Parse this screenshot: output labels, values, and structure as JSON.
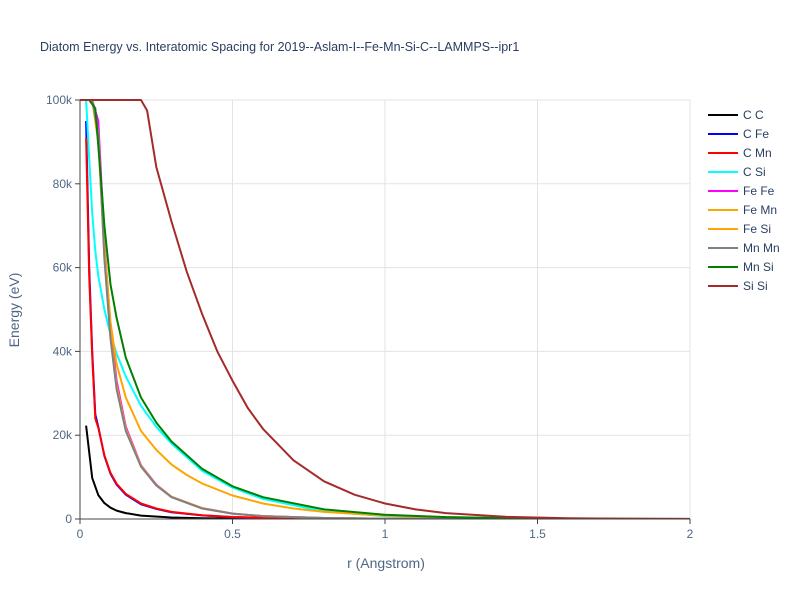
{
  "chart_data": {
    "type": "line",
    "title": "Diatom Energy vs. Interatomic Spacing for 2019--Aslam-I--Fe-Mn-Si-C--LAMMPS--ipr1",
    "xlabel": "r (Angstrom)",
    "ylabel": "Energy (eV)",
    "xlim": [
      0,
      2
    ],
    "ylim": [
      0,
      100000
    ],
    "xticks": [
      0,
      0.5,
      1,
      1.5,
      2
    ],
    "xtick_labels": [
      "0",
      "0.5",
      "1",
      "1.5",
      "2"
    ],
    "yticks": [
      0,
      20000,
      40000,
      60000,
      80000,
      100000
    ],
    "ytick_labels": [
      "0",
      "20k",
      "40k",
      "60k",
      "80k",
      "100k"
    ],
    "grid": true,
    "legend_position": "right",
    "series": [
      {
        "name": "C C",
        "color": "#000000",
        "x": [
          0.02,
          0.04,
          0.06,
          0.08,
          0.1,
          0.12,
          0.15,
          0.2,
          0.3,
          0.4,
          0.6,
          1.0,
          2.0
        ],
        "y": [
          22300,
          9800,
          5700,
          3800,
          2700,
          2000,
          1400,
          800,
          350,
          180,
          60,
          10,
          0
        ]
      },
      {
        "name": "C Fe",
        "color": "#0000ff",
        "x": [
          0.02,
          0.03,
          0.04,
          0.05,
          0.06,
          0.08,
          0.1,
          0.12,
          0.15,
          0.2,
          0.25,
          0.3,
          0.4,
          0.5,
          0.7,
          1.0,
          2.0
        ],
        "y": [
          95000,
          60000,
          40000,
          25000,
          22000,
          15000,
          10800,
          8200,
          5800,
          3500,
          2400,
          1600,
          850,
          450,
          150,
          30,
          0
        ]
      },
      {
        "name": "C Mn",
        "color": "#ff0000",
        "x": [
          0.02,
          0.03,
          0.04,
          0.05,
          0.06,
          0.08,
          0.1,
          0.12,
          0.15,
          0.2,
          0.25,
          0.3,
          0.4,
          0.5,
          0.7,
          1.0,
          2.0
        ],
        "y": [
          91000,
          58000,
          39000,
          24000,
          21800,
          15200,
          11000,
          8400,
          6000,
          3700,
          2500,
          1700,
          900,
          480,
          160,
          30,
          0
        ]
      },
      {
        "name": "C Si",
        "color": "#00ffff",
        "x": [
          0.02,
          0.03,
          0.04,
          0.05,
          0.06,
          0.08,
          0.1,
          0.12,
          0.15,
          0.2,
          0.25,
          0.3,
          0.4,
          0.5,
          0.6,
          0.8,
          1.0,
          1.5,
          2.0
        ],
        "y": [
          100000,
          86000,
          73000,
          64000,
          58000,
          50000,
          44000,
          39500,
          34000,
          27000,
          22000,
          18000,
          11500,
          7500,
          4800,
          1800,
          700,
          100,
          10
        ]
      },
      {
        "name": "Fe Fe",
        "color": "#ff00ff",
        "x": [
          0.04,
          0.06,
          0.08,
          0.1,
          0.12,
          0.15,
          0.2,
          0.25,
          0.3,
          0.4,
          0.5,
          0.6,
          0.8,
          1.0,
          1.5,
          2.0
        ],
        "y": [
          100000,
          95000,
          66000,
          46000,
          33000,
          22000,
          12800,
          8200,
          5300,
          2600,
          1300,
          700,
          250,
          80,
          10,
          0
        ]
      },
      {
        "name": "Fe Mn",
        "color": "#ffa500",
        "x": [
          0.04,
          0.06,
          0.08,
          0.1,
          0.12,
          0.15,
          0.2,
          0.25,
          0.3,
          0.4,
          0.5,
          0.6,
          0.8,
          1.0,
          1.5,
          2.0
        ],
        "y": [
          100000,
          92000,
          63000,
          44000,
          32000,
          21500,
          12700,
          8100,
          5300,
          2600,
          1300,
          700,
          250,
          80,
          10,
          0
        ]
      },
      {
        "name": "Fe Si",
        "color": "#ffa500",
        "x": [
          0.04,
          0.06,
          0.08,
          0.1,
          0.12,
          0.15,
          0.2,
          0.25,
          0.3,
          0.35,
          0.4,
          0.5,
          0.6,
          0.7,
          0.8,
          1.0,
          1.2,
          1.5,
          2.0
        ],
        "y": [
          100000,
          90000,
          65000,
          47000,
          37000,
          29000,
          21000,
          16500,
          13000,
          10500,
          8500,
          5600,
          3700,
          2500,
          1700,
          800,
          400,
          120,
          10
        ]
      },
      {
        "name": "Mn Mn",
        "color": "#808080",
        "x": [
          0.04,
          0.06,
          0.08,
          0.1,
          0.12,
          0.15,
          0.2,
          0.25,
          0.3,
          0.4,
          0.5,
          0.6,
          0.8,
          1.0,
          1.5,
          2.0
        ],
        "y": [
          100000,
          92000,
          62000,
          43000,
          31000,
          21000,
          12500,
          8000,
          5200,
          2500,
          1300,
          700,
          250,
          80,
          10,
          0
        ]
      },
      {
        "name": "Mn Si",
        "color": "#008000",
        "x": [
          0.03,
          0.05,
          0.07,
          0.08,
          0.1,
          0.12,
          0.15,
          0.2,
          0.25,
          0.3,
          0.4,
          0.5,
          0.6,
          0.8,
          1.0,
          1.2,
          1.5,
          2.0
        ],
        "y": [
          100000,
          98000,
          80000,
          70000,
          56000,
          48000,
          38500,
          29000,
          23000,
          18500,
          12000,
          7800,
          5200,
          2300,
          1000,
          450,
          120,
          10
        ]
      },
      {
        "name": "Si Si",
        "color": "#a52a2a",
        "x": [
          0,
          0.1,
          0.2,
          0.22,
          0.25,
          0.3,
          0.35,
          0.4,
          0.45,
          0.5,
          0.55,
          0.6,
          0.7,
          0.8,
          0.9,
          1.0,
          1.1,
          1.2,
          1.4,
          1.6,
          1.8,
          2.0
        ],
        "y": [
          100000,
          100000,
          100000,
          97500,
          84000,
          71000,
          59000,
          49000,
          40000,
          33000,
          26500,
          21500,
          14000,
          9000,
          5800,
          3700,
          2300,
          1400,
          500,
          170,
          60,
          20
        ]
      }
    ]
  }
}
